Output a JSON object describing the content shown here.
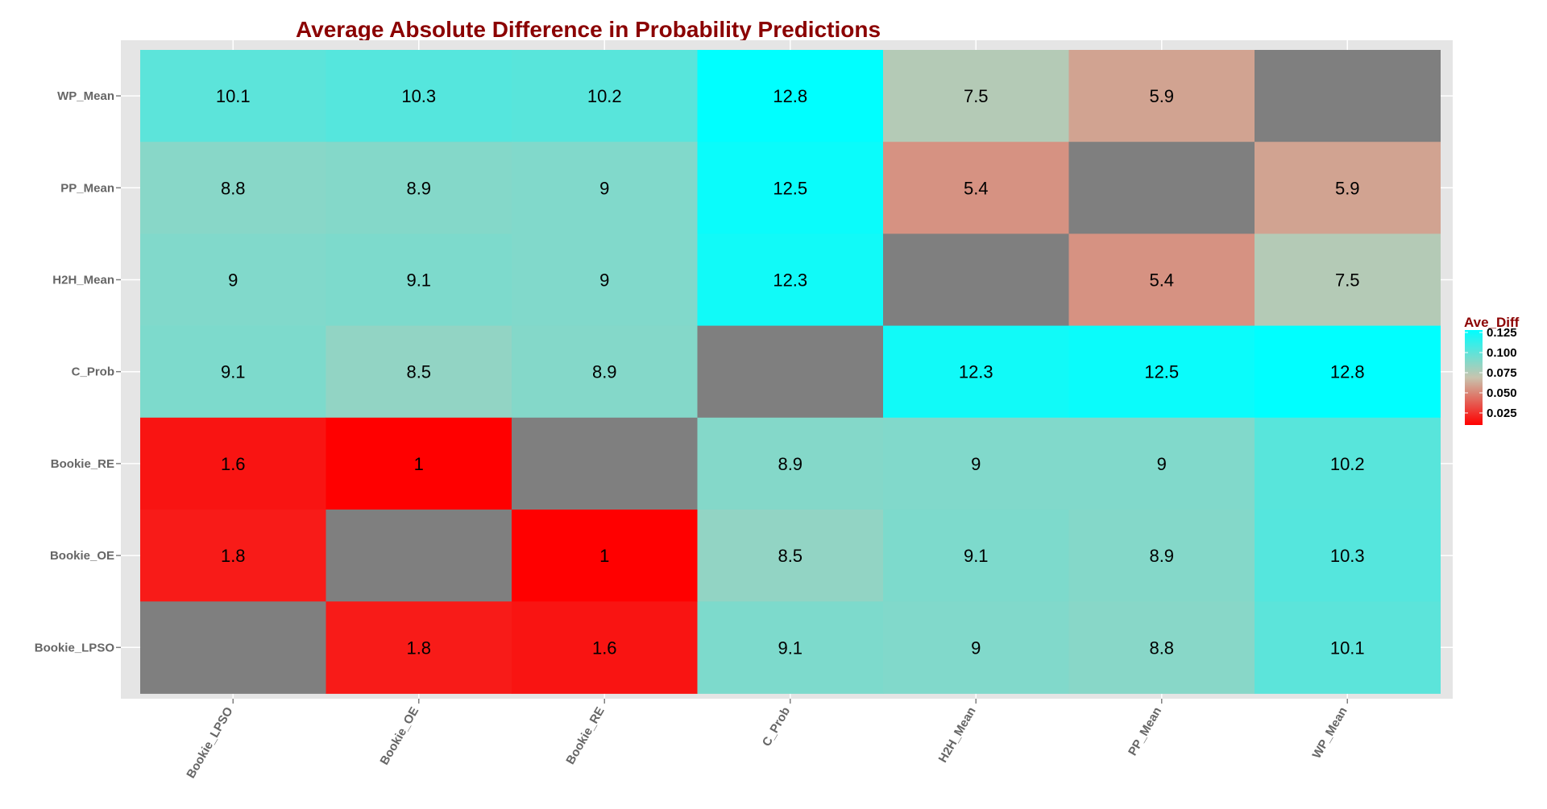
{
  "chart_data": {
    "type": "heatmap",
    "title": "Average Absolute Difference in Probability Predictions",
    "x_categories": [
      "Bookie_LPSO",
      "Bookie_OE",
      "Bookie_RE",
      "C_Prob",
      "H2H_Mean",
      "PP_Mean",
      "WP_Mean"
    ],
    "y_categories_top_to_bottom": [
      "WP_Mean",
      "PP_Mean",
      "H2H_Mean",
      "C_Prob",
      "Bookie_RE",
      "Bookie_OE",
      "Bookie_LPSO"
    ],
    "values": [
      [
        10.1,
        10.3,
        10.2,
        12.8,
        7.5,
        5.9,
        null
      ],
      [
        8.8,
        8.9,
        9,
        12.5,
        5.4,
        null,
        5.9
      ],
      [
        9,
        9.1,
        9,
        12.3,
        null,
        5.4,
        7.5
      ],
      [
        9.1,
        8.5,
        8.9,
        null,
        12.3,
        12.5,
        12.8
      ],
      [
        1.6,
        1,
        null,
        8.9,
        9,
        9,
        10.2
      ],
      [
        1.8,
        null,
        1,
        8.5,
        9.1,
        8.9,
        10.3
      ],
      [
        null,
        1.8,
        1.6,
        9.1,
        9,
        8.8,
        10.1
      ]
    ],
    "legend": {
      "title": "Ave_Diff",
      "ticks": [
        "0.125",
        "0.100",
        "0.075",
        "0.050",
        "0.025"
      ],
      "range": [
        0.01,
        0.128
      ],
      "placement": "right"
    },
    "colors": {
      "low": "#ff0000",
      "mid": "#c8c4ae",
      "high": "#00ffff",
      "na": "#7f7f7f",
      "panel": "#e5e5e5",
      "title": "#8b0000",
      "tick": "#666666"
    }
  }
}
